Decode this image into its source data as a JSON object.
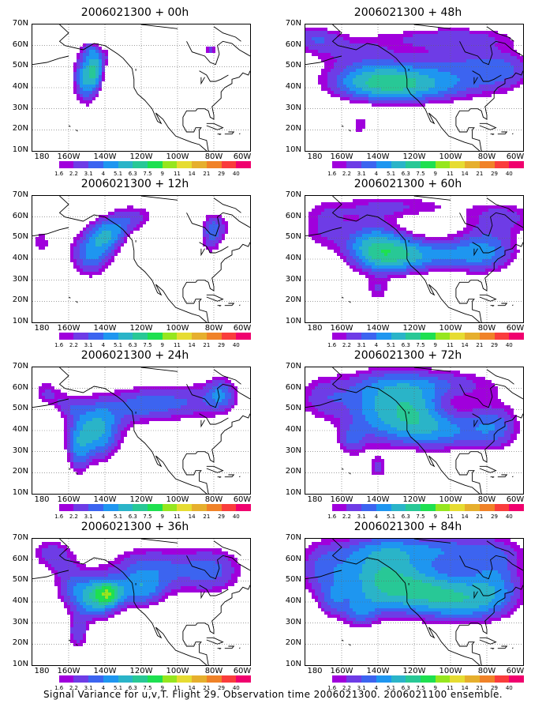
{
  "footer": "Signal Variance for u,v,T. Flight 29. Observation time 2006021300. 2006021100 ensemble.",
  "lat_labels": [
    "70N",
    "60N",
    "50N",
    "40N",
    "30N",
    "20N",
    "10N"
  ],
  "lon_labels": [
    "180",
    "160W",
    "140W",
    "120W",
    "100W",
    "80W",
    "60W"
  ],
  "colorbar": {
    "labels": [
      "1.6",
      "2.2",
      "3.1",
      "4",
      "5.1",
      "6.3",
      "7.5",
      "9",
      "11",
      "14",
      "21",
      "29",
      "40"
    ],
    "colors": [
      "#ffffff",
      "#a000dc",
      "#6e3ce6",
      "#3c64f0",
      "#1e96f0",
      "#2ab4c8",
      "#28c896",
      "#1ee050",
      "#96e61e",
      "#e6dc32",
      "#e6af2d",
      "#f08228",
      "#fa3c3c",
      "#f0006e"
    ]
  },
  "chart_data": {
    "type": "heatmap",
    "xlim": [
      180,
      300
    ],
    "ylim": [
      10,
      70
    ],
    "xunit": "longitude (degrees east, 180-300 = 180-60W)",
    "yunit": "latitude (degrees north)",
    "panels": [
      {
        "title": "2006021300 + 00h",
        "centers": [
          [
            -148,
            58,
            4,
            3,
            2.2
          ],
          [
            -150,
            45,
            7,
            12,
            5.5
          ],
          [
            -145,
            49,
            4,
            7,
            3.5
          ],
          [
            -82,
            58,
            4,
            3,
            2.4
          ],
          [
            -140,
            55,
            5,
            5,
            1.8
          ]
        ]
      },
      {
        "title": "2006021300 + 48h",
        "centers": [
          [
            -175,
            64,
            14,
            6,
            2.3
          ],
          [
            -140,
            44,
            28,
            9,
            4.5
          ],
          [
            -125,
            40,
            35,
            8,
            3.2
          ],
          [
            -95,
            50,
            30,
            14,
            2.6
          ],
          [
            -70,
            48,
            18,
            10,
            2.2
          ],
          [
            -150,
            22,
            6,
            6,
            2.0
          ],
          [
            -155,
            58,
            30,
            8,
            2.0
          ],
          [
            -100,
            64,
            40,
            5,
            2.0
          ]
        ]
      },
      {
        "title": "2006021300 + 12h",
        "centers": [
          [
            -175,
            48,
            5,
            7,
            2.2
          ],
          [
            -148,
            42,
            12,
            11,
            3.8
          ],
          [
            -140,
            50,
            10,
            8,
            3.0
          ],
          [
            -125,
            60,
            14,
            7,
            2.5
          ],
          [
            -78,
            55,
            8,
            8,
            2.4
          ],
          [
            -135,
            54,
            10,
            6,
            2.0
          ],
          [
            -82,
            50,
            6,
            10,
            2.0
          ]
        ]
      },
      {
        "title": "2006021300 + 60h",
        "centers": [
          [
            -170,
            55,
            15,
            12,
            2.2
          ],
          [
            -143,
            47,
            16,
            12,
            4.0
          ],
          [
            -130,
            42,
            20,
            9,
            4.5
          ],
          [
            -100,
            42,
            28,
            8,
            3.0
          ],
          [
            -80,
            45,
            18,
            12,
            2.8
          ],
          [
            -140,
            25,
            7,
            6,
            2.0
          ],
          [
            -130,
            65,
            40,
            6,
            2.2
          ],
          [
            -70,
            60,
            20,
            8,
            2.2
          ]
        ]
      },
      {
        "title": "2006021300 + 24h",
        "centers": [
          [
            -172,
            58,
            8,
            7,
            2.3
          ],
          [
            -145,
            40,
            14,
            14,
            5.5
          ],
          [
            -155,
            30,
            6,
            12,
            2.6
          ],
          [
            -120,
            52,
            20,
            9,
            3.0
          ],
          [
            -90,
            54,
            25,
            10,
            2.6
          ],
          [
            -76,
            58,
            8,
            8,
            2.6
          ],
          [
            -160,
            52,
            8,
            6,
            2.0
          ]
        ]
      },
      {
        "title": "2006021300 + 72h",
        "centers": [
          [
            -170,
            55,
            16,
            12,
            2.6
          ],
          [
            -140,
            50,
            18,
            16,
            4.2
          ],
          [
            -120,
            50,
            15,
            12,
            3.8
          ],
          [
            -105,
            40,
            25,
            10,
            4.0
          ],
          [
            -75,
            42,
            15,
            12,
            3.0
          ],
          [
            -140,
            22,
            6,
            6,
            2.2
          ],
          [
            -110,
            62,
            40,
            8,
            3.0
          ],
          [
            -155,
            35,
            8,
            8,
            2.4
          ]
        ]
      },
      {
        "title": "2006021300 + 36h",
        "centers": [
          [
            -170,
            63,
            12,
            8,
            2.5
          ],
          [
            -145,
            42,
            13,
            10,
            5.6
          ],
          [
            -138,
            44,
            7,
            5,
            4.5
          ],
          [
            -155,
            25,
            6,
            8,
            2.8
          ],
          [
            -115,
            55,
            25,
            12,
            3.5
          ],
          [
            -80,
            55,
            18,
            12,
            3.0
          ],
          [
            -120,
            45,
            12,
            8,
            3.0
          ],
          [
            -160,
            50,
            10,
            12,
            2.2
          ]
        ]
      },
      {
        "title": "2006021300 + 84h",
        "centers": [
          [
            -170,
            55,
            16,
            14,
            3.0
          ],
          [
            -140,
            52,
            20,
            16,
            4.8
          ],
          [
            -115,
            46,
            25,
            12,
            5.0
          ],
          [
            -90,
            40,
            25,
            10,
            4.0
          ],
          [
            -75,
            52,
            16,
            14,
            3.2
          ],
          [
            -110,
            65,
            45,
            8,
            3.5
          ],
          [
            -150,
            35,
            10,
            8,
            2.6
          ],
          [
            -165,
            40,
            8,
            8,
            2.2
          ]
        ]
      }
    ]
  }
}
